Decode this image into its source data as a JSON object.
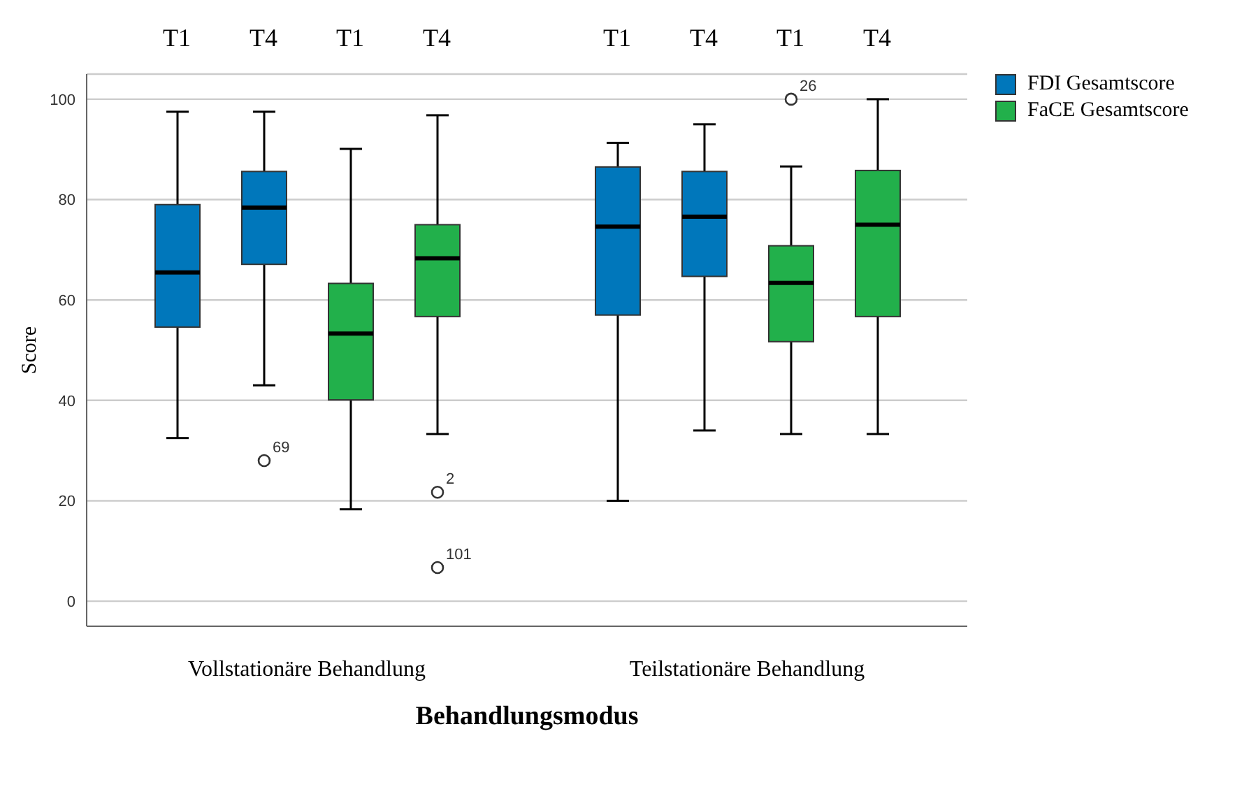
{
  "chart_data": {
    "type": "box",
    "xlabel": "Behandlungsmodus",
    "ylabel": "Score",
    "categories": [
      "Vollstationäre Behandlung",
      "Teilstationäre Behandlung"
    ],
    "series": [
      {
        "name": "FDI Gesamtscore",
        "color": "#0077bb",
        "boxes": [
          {
            "low": 32.5,
            "q1": 54.6,
            "median": 65.5,
            "q3": 79.0,
            "high": 97.5
          },
          {
            "low": 20.0,
            "q1": 57.0,
            "median": 74.6,
            "q3": 86.5,
            "high": 91.3
          }
        ]
      },
      {
        "color": "#0077bb",
        "boxes": [
          {
            "low": 43.0,
            "q1": 67.1,
            "median": 78.4,
            "q3": 85.6,
            "high": 97.5,
            "outliers": [
              28.0
            ]
          },
          {
            "low": 34.0,
            "q1": 64.7,
            "median": 76.6,
            "q3": 85.6,
            "high": 95.0
          }
        ]
      },
      {
        "name": "FaCE Gesamtscore",
        "color": "#22b04b",
        "boxes": [
          {
            "low": 18.3,
            "q1": 40.1,
            "median": 53.3,
            "q3": 63.3,
            "high": 90.1
          },
          {
            "low": 33.3,
            "q1": 51.7,
            "median": 63.4,
            "q3": 70.8,
            "high": 86.6,
            "outliers": [
              100
            ]
          }
        ]
      },
      {
        "color": "#22b04b",
        "boxes": [
          {
            "low": 33.3,
            "q1": 56.7,
            "median": 68.3,
            "q3": 75.0,
            "high": 96.8,
            "outliers": [
              21.7,
              6.7
            ]
          },
          {
            "low": 33.3,
            "q1": 56.7,
            "median": 75.0,
            "q3": 85.8,
            "high": 100
          }
        ]
      }
    ],
    "annotations": [
      "T1",
      "T4",
      "T1",
      "T4",
      "T1",
      "T4",
      "T1",
      "T4",
      "69",
      "2",
      "101",
      "26"
    ],
    "ylim": [
      -5,
      105
    ],
    "yticks": [
      0,
      20,
      40,
      60,
      80,
      100
    ],
    "grid": "y",
    "legend": "top right"
  }
}
